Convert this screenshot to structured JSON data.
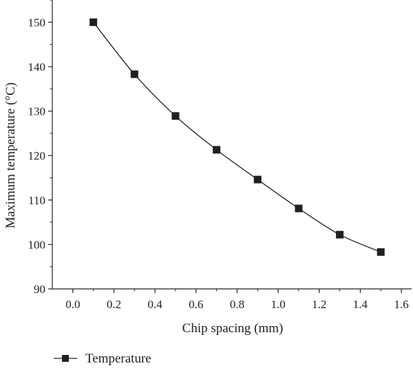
{
  "chart_data": {
    "type": "line",
    "title": "",
    "xlabel": "Chip spacing (mm)",
    "ylabel": "Maximum temperature (°C)",
    "xlim": [
      -0.1,
      1.65
    ],
    "ylim": [
      90,
      155
    ],
    "xticks": [
      0.0,
      0.2,
      0.4,
      0.6,
      0.8,
      1.0,
      1.2,
      1.4,
      1.6
    ],
    "xtick_labels": [
      "0.0",
      "0.2",
      "0.4",
      "0.6",
      "0.8",
      "1.0",
      "1.2",
      "1.4",
      "1.6"
    ],
    "yticks": [
      90,
      100,
      110,
      120,
      130,
      140,
      150
    ],
    "ytick_labels": [
      "90",
      "100",
      "110",
      "120",
      "130",
      "140",
      "150"
    ],
    "grid": false,
    "legend_position": "bottom-left",
    "series": [
      {
        "name": "Temperature",
        "marker": "square",
        "color": "#231f20",
        "x": [
          0.1,
          0.3,
          0.5,
          0.7,
          0.9,
          1.1,
          1.3,
          1.5
        ],
        "y": [
          150.0,
          138.3,
          128.9,
          121.3,
          114.6,
          108.1,
          102.2,
          98.3
        ]
      }
    ]
  }
}
